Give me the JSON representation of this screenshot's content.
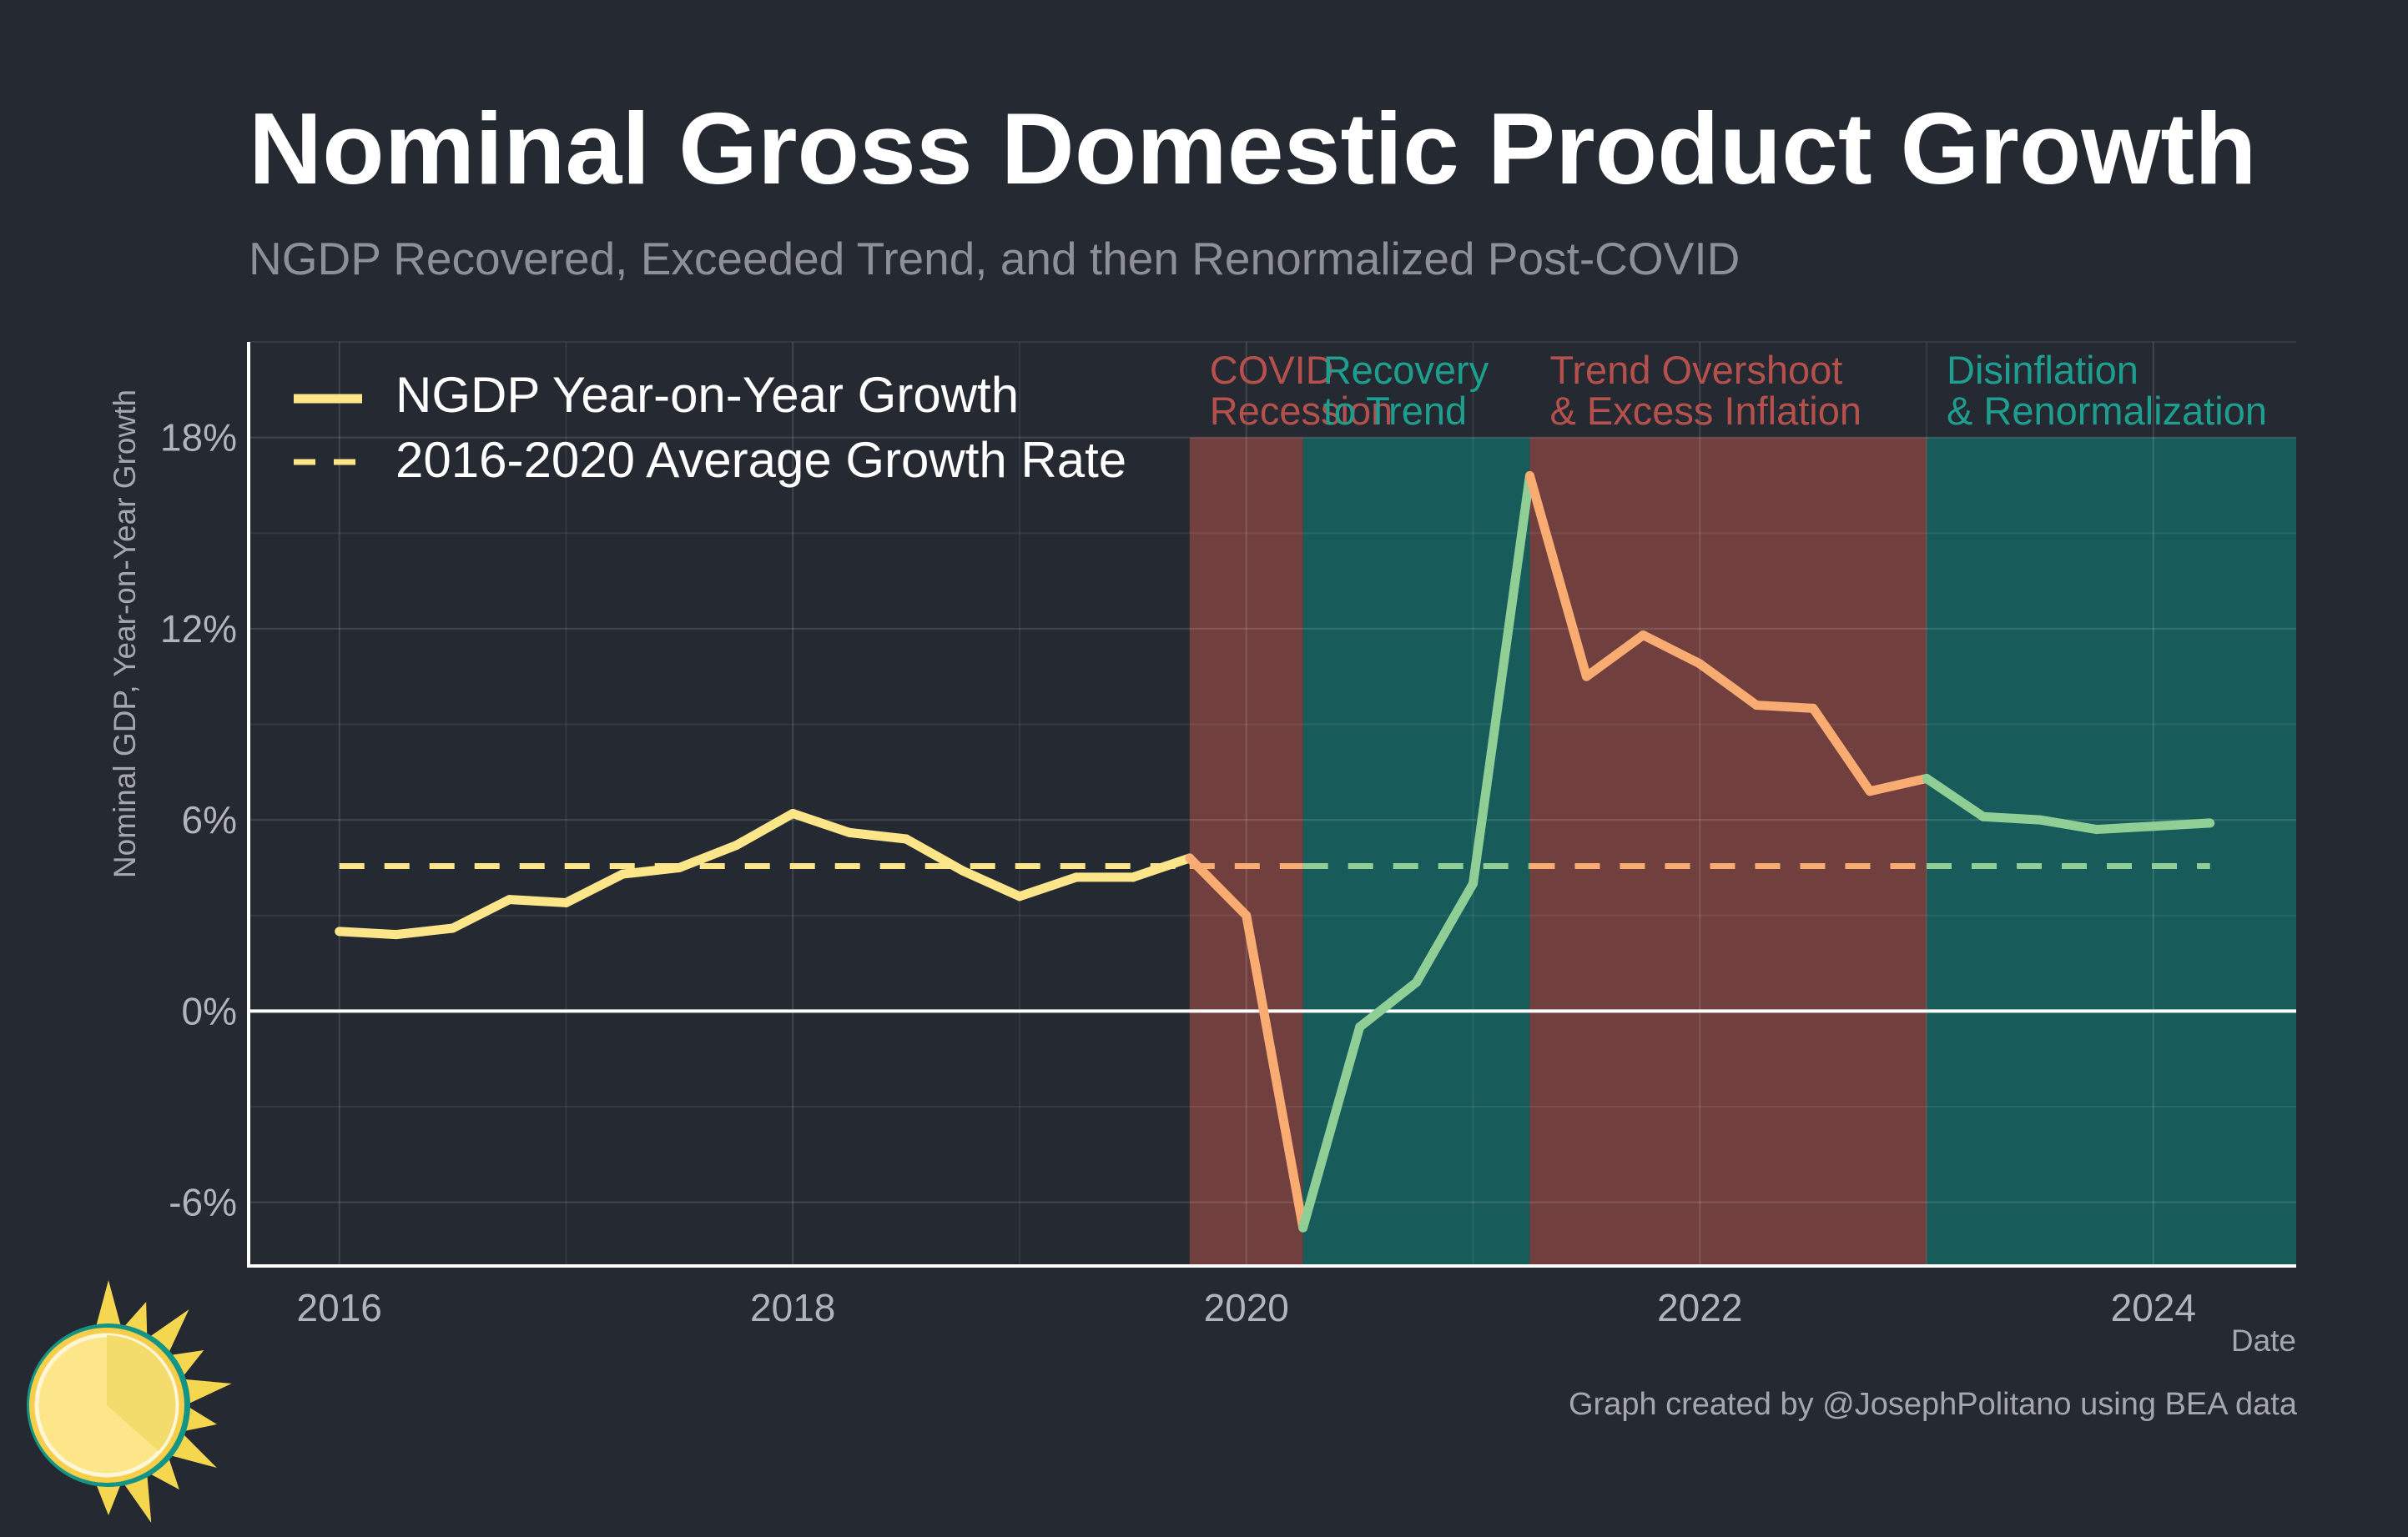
{
  "title": "Nominal Gross Domestic Product Growth",
  "subtitle": "NGDP Recovered, Exceeded Trend, and then Renormalized Post-COVID",
  "credit": "Graph created by @JosephPolitano using BEA data",
  "colors": {
    "background": "#252932",
    "yellow": "#fde68a",
    "orange": "#f9ac72",
    "green": "#8fcf96",
    "red_band": "#723f3f",
    "teal_band": "#175c5a",
    "red_text": "#b5514c",
    "teal_text": "#1d9e8e"
  },
  "chart_data": {
    "type": "line",
    "xlabel": "Date",
    "ylabel": "Nominal GDP, Year-on-Year Growth",
    "xlim": [
      2015.6,
      2024.63
    ],
    "ylim": [
      -8.0,
      21.0
    ],
    "x_ticks": [
      2016,
      2018,
      2020,
      2022,
      2024
    ],
    "x_tick_labels": [
      "2016",
      "2018",
      "2020",
      "2022",
      "2024"
    ],
    "y_ticks": [
      -6,
      0,
      6,
      12,
      18
    ],
    "y_tick_labels": [
      "-6%",
      "0%",
      "6%",
      "12%",
      "18%"
    ],
    "grid": true,
    "legend_position": "top-left",
    "series": [
      {
        "name": "NGDP Year-on-Year Growth",
        "style": "solid",
        "x": [
          2016.0,
          2016.25,
          2016.5,
          2016.75,
          2017.0,
          2017.25,
          2017.5,
          2017.75,
          2018.0,
          2018.25,
          2018.5,
          2018.75,
          2019.0,
          2019.25,
          2019.5,
          2019.75,
          2020.0,
          2020.25,
          2020.5,
          2020.75,
          2021.0,
          2021.25,
          2021.5,
          2021.75,
          2022.0,
          2022.25,
          2022.5,
          2022.75,
          2023.0,
          2023.25,
          2023.5,
          2023.75,
          2024.0,
          2024.25
        ],
        "values": [
          2.5,
          2.4,
          2.6,
          3.5,
          3.4,
          4.3,
          4.5,
          5.2,
          6.2,
          5.6,
          5.4,
          4.4,
          3.6,
          4.2,
          4.2,
          4.8,
          3.0,
          -6.8,
          -0.5,
          0.9,
          4.0,
          16.8,
          10.5,
          11.8,
          10.9,
          9.6,
          9.5,
          6.9,
          7.3,
          6.1,
          6.0,
          5.7,
          5.8,
          5.9
        ]
      },
      {
        "name": "2016-2020 Average Growth Rate",
        "style": "dashed",
        "x": [
          2016.0,
          2024.25
        ],
        "values": [
          4.55,
          4.55
        ]
      }
    ],
    "periods": [
      {
        "label_line1": "COVID",
        "label_line2": "Recession",
        "start": 2019.75,
        "end": 2020.25,
        "color_key": "red"
      },
      {
        "label_line1": "Recovery",
        "label_line2": "to Trend",
        "start": 2020.25,
        "end": 2021.25,
        "color_key": "teal"
      },
      {
        "label_line1": "Trend Overshoot",
        "label_line2": "& Excess Inflation",
        "start": 2021.25,
        "end": 2023.0,
        "color_key": "red"
      },
      {
        "label_line1": "Disinflation",
        "label_line2": "& Renormalization",
        "start": 2023.0,
        "end": 2024.63,
        "color_key": "teal"
      }
    ],
    "band_top_value": 18
  }
}
